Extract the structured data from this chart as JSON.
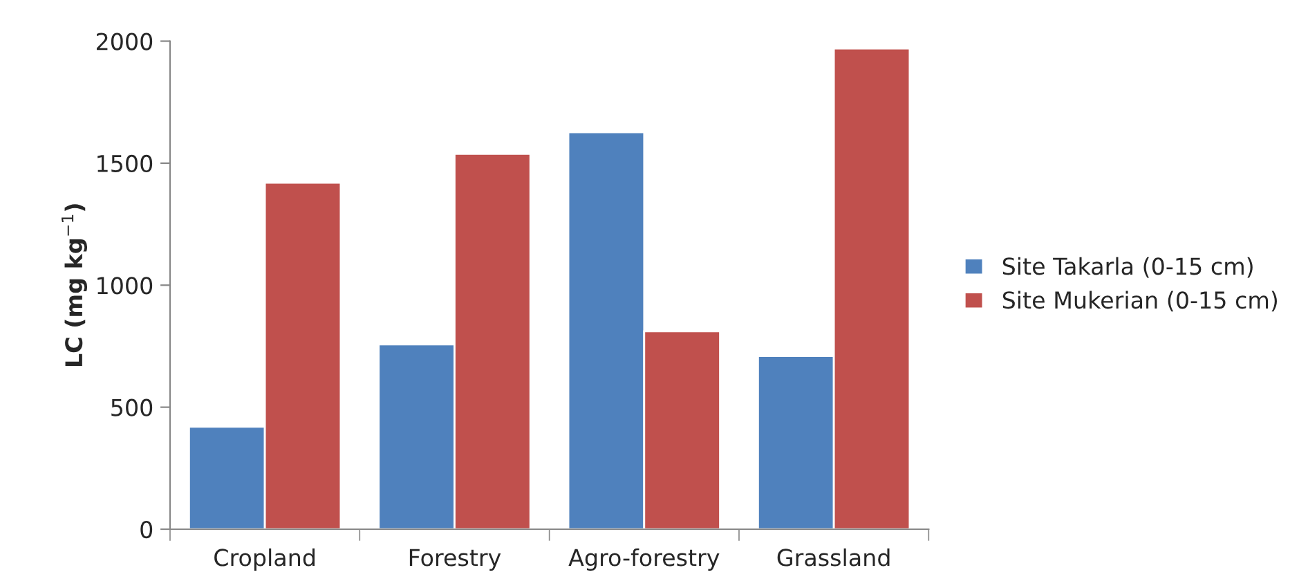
{
  "chart_data": {
    "type": "bar",
    "ylabel": "LC (mg kg$^{−1}$)",
    "categories": [
      "Cropland",
      "Forestry",
      "Agro-forestry",
      "Grassland"
    ],
    "series": [
      {
        "name": "Site Takarla (0-15 cm)",
        "color": "#4f81bd",
        "values": [
          420,
          757,
          1627,
          710
        ]
      },
      {
        "name": "Site Mukerian (0-15 cm)",
        "color": "#c0504d",
        "values": [
          1420,
          1538,
          811,
          1970
        ]
      }
    ],
    "ylim": [
      0,
      2000
    ],
    "yticks": [
      0,
      500,
      1000,
      1500,
      2000
    ],
    "grid": false,
    "legend": "right"
  }
}
